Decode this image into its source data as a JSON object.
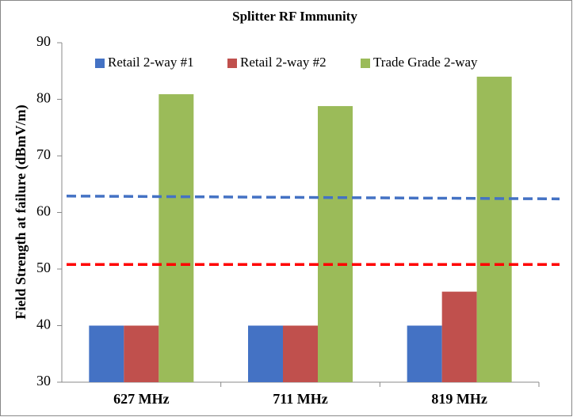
{
  "chart_data": {
    "type": "bar",
    "title": "Splitter RF Immunity",
    "y_label": "Field Strength at failure (dBmV/m)",
    "categories": [
      "627 MHz",
      "711 MHz",
      "819 MHz"
    ],
    "series": [
      {
        "name": "Retail 2-way #1",
        "color": "#4472c4",
        "values": [
          40,
          40,
          40
        ]
      },
      {
        "name": "Retail 2-way #2",
        "color": "#c0504d",
        "values": [
          40,
          40,
          46
        ]
      },
      {
        "name": "Trade Grade 2-way",
        "color": "#9bbb59",
        "values": [
          80.9,
          78.8,
          84
        ]
      }
    ],
    "reference_lines": [
      {
        "color": "#4472c4",
        "style": "dashed",
        "values": [
          62.9,
          62.4
        ]
      },
      {
        "color": "#ff0000",
        "style": "dashed",
        "values": [
          50.8,
          50.8
        ]
      }
    ],
    "ylim": [
      30,
      90
    ],
    "yticks": [
      30,
      40,
      50,
      60,
      70,
      80,
      90
    ],
    "grid": false,
    "legend": "top"
  }
}
